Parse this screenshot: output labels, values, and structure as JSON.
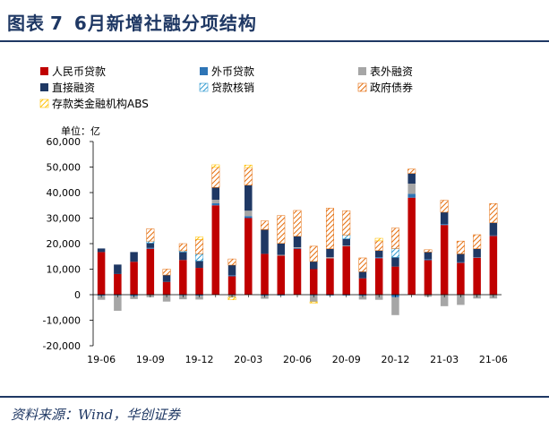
{
  "header": {
    "title_prefix": "图表",
    "title_number": "7",
    "title_text": "6月新增社融分项结构"
  },
  "footer": {
    "source": "资料来源：Wind，华创证券"
  },
  "chart_data": {
    "type": "bar",
    "stacked": true,
    "unit": "单位：亿",
    "ylim": [
      -20000,
      60000
    ],
    "yticks": [
      "-20,000",
      "-10,000",
      "0",
      "10,000",
      "20,000",
      "30,000",
      "40,000",
      "50,000",
      "60,000"
    ],
    "ytick_values": [
      -20000,
      -10000,
      0,
      10000,
      20000,
      30000,
      40000,
      50000,
      60000
    ],
    "categories": [
      "19-06",
      "19-07",
      "19-08",
      "19-09",
      "19-10",
      "19-11",
      "19-12",
      "20-01",
      "20-02",
      "20-03",
      "20-04",
      "20-05",
      "20-06",
      "20-07",
      "20-08",
      "20-09",
      "20-10",
      "20-11",
      "20-12",
      "21-01",
      "21-02",
      "21-03",
      "21-04",
      "21-05",
      "21-06"
    ],
    "xtick_labels": [
      "19-06",
      "19-09",
      "19-12",
      "20-03",
      "20-06",
      "20-09",
      "20-12",
      "21-03",
      "21-06"
    ],
    "xtick_indices": [
      0,
      3,
      6,
      9,
      12,
      15,
      18,
      21,
      24
    ],
    "legend_position": "top",
    "series": [
      {
        "name": "人民币贷款",
        "color": "#c00000",
        "pattern": "solid",
        "values": [
          16700,
          8100,
          12900,
          18000,
          5000,
          13600,
          10500,
          35000,
          7200,
          30000,
          16000,
          15300,
          18000,
          10000,
          14200,
          19000,
          6400,
          14300,
          11000,
          38000,
          13500,
          27300,
          12500,
          14500,
          23000
        ]
      },
      {
        "name": "外币贷款",
        "color": "#2e75b6",
        "pattern": "solid",
        "values": [
          -400,
          -300,
          -500,
          400,
          -200,
          -300,
          -400,
          800,
          400,
          800,
          -400,
          -300,
          300,
          -300,
          -300,
          -300,
          -400,
          400,
          -1000,
          1500,
          400,
          400,
          300,
          200,
          200
        ]
      },
      {
        "name": "表外融资",
        "color": "#a6a6a6",
        "pattern": "solid",
        "values": [
          -1600,
          -6000,
          -1200,
          -1000,
          -2500,
          -1500,
          -1500,
          1400,
          -1000,
          2100,
          -1200,
          300,
          300,
          -2500,
          500,
          200,
          -1500,
          -2000,
          -7000,
          4000,
          -800,
          -4500,
          -4000,
          -1500,
          -1500
        ]
      },
      {
        "name": "直接融资",
        "color": "#1f3864",
        "pattern": "solid",
        "values": [
          1400,
          3700,
          3800,
          1800,
          2700,
          3100,
          2700,
          4800,
          4000,
          10000,
          9500,
          4500,
          4300,
          3000,
          3300,
          2700,
          2600,
          2600,
          3600,
          4000,
          2800,
          4600,
          3200,
          3300,
          5000
        ]
      },
      {
        "name": "贷款核销",
        "color": "#2e9ad0",
        "pattern": "hatch",
        "values": [
          0,
          0,
          0,
          800,
          0,
          500,
          2800,
          0,
          0,
          0,
          0,
          0,
          0,
          0,
          0,
          1500,
          0,
          0,
          3500,
          0,
          0,
          0,
          0,
          0,
          0
        ]
      },
      {
        "name": "政府债券",
        "color": "#e46c0a",
        "pattern": "hatch",
        "values": [
          0,
          0,
          0,
          4800,
          2300,
          2800,
          5600,
          7900,
          2400,
          6900,
          3400,
          10900,
          10100,
          6000,
          15900,
          9500,
          5400,
          3800,
          8000,
          1700,
          900,
          4700,
          5000,
          5500,
          7500
        ]
      },
      {
        "name": "存款类金融机构ABS",
        "color": "#ffc000",
        "pattern": "hatch",
        "values": [
          0,
          0,
          0,
          0,
          0,
          0,
          1000,
          1000,
          -1000,
          1000,
          0,
          0,
          0,
          -500,
          0,
          0,
          0,
          1000,
          0,
          0,
          0,
          0,
          0,
          0,
          0
        ]
      }
    ]
  }
}
